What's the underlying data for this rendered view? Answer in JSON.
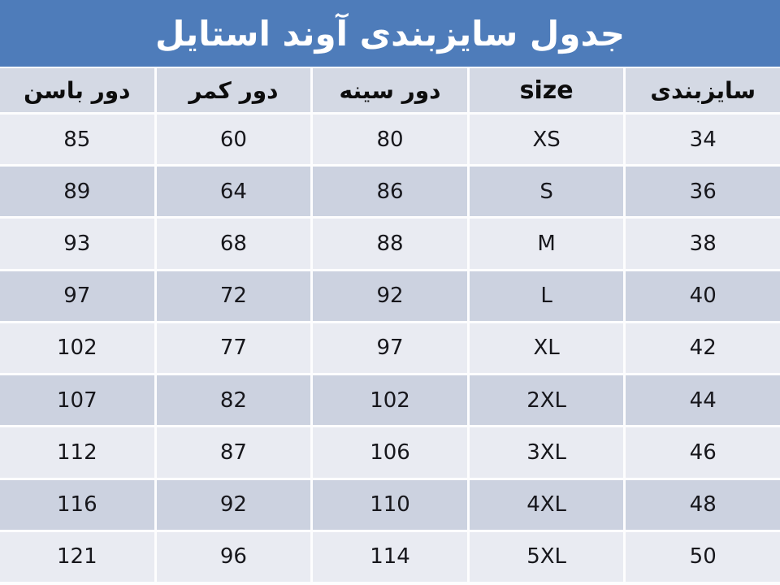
{
  "title": "جدول سایزبندی آوند استایل",
  "colors": {
    "title_bar_bg": "#4e7cba",
    "title_text": "#ffffff",
    "header_row_bg": "#d4d9e4",
    "row_light_bg": "#e9ebf2",
    "row_dark_bg": "#ccd2e0",
    "cell_text": "#17171c",
    "grid_gap": "#fdfdfe"
  },
  "chart_data": {
    "type": "table",
    "title": "جدول سایزبندی آوند استایل",
    "direction": "rtl",
    "columns": [
      "سایزبندی",
      "size",
      "دور سینه",
      "دور کمر",
      "دور باسن"
    ],
    "rows": [
      [
        "34",
        "XS",
        "80",
        "60",
        "85"
      ],
      [
        "36",
        "S",
        "86",
        "64",
        "89"
      ],
      [
        "38",
        "M",
        "88",
        "68",
        "93"
      ],
      [
        "40",
        "L",
        "92",
        "72",
        "97"
      ],
      [
        "42",
        "XL",
        "97",
        "77",
        "102"
      ],
      [
        "44",
        "2XL",
        "102",
        "82",
        "107"
      ],
      [
        "46",
        "3XL",
        "106",
        "87",
        "112"
      ],
      [
        "48",
        "4XL",
        "110",
        "92",
        "116"
      ],
      [
        "50",
        "5XL",
        "114",
        "96",
        "121"
      ]
    ]
  }
}
